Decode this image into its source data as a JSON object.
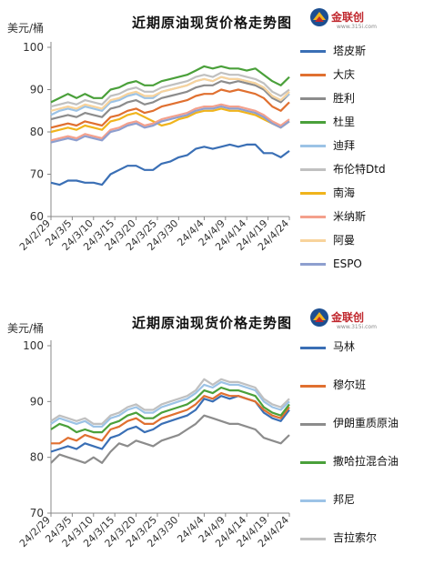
{
  "chart_data": [
    {
      "type": "line",
      "title": "近期原油现货价格走势图",
      "ylabel": "美元/桶",
      "ylim": [
        60,
        100
      ],
      "yticks": [
        "60",
        "70",
        "80",
        "90",
        "100"
      ],
      "xtick_labels": [
        "24/2/29",
        "24/3/5",
        "24/3/10",
        "24/3/15",
        "24/3/20",
        "24/3/25",
        "24/3/30",
        "24/4/4",
        "24/4/9",
        "24/4/14",
        "24/4/19",
        "24/4/24"
      ],
      "xtick_positions": [
        0,
        5,
        10,
        15,
        20,
        25,
        30,
        36,
        41,
        46,
        51,
        56
      ],
      "x_max": 56,
      "series": [
        {
          "name": "塔皮斯",
          "color": "#3a6fb5",
          "x": [
            0,
            2,
            4,
            6,
            8,
            10,
            12,
            14,
            16,
            18,
            20,
            22,
            24,
            26,
            28,
            30,
            32,
            34,
            36,
            38,
            40,
            42,
            44,
            46,
            48,
            50,
            52,
            54,
            56
          ],
          "values": [
            68,
            67.5,
            68.5,
            68.5,
            68,
            68,
            67.5,
            70,
            71,
            72,
            72,
            71,
            71,
            72.5,
            73,
            74,
            74.5,
            76,
            76.5,
            76,
            76.5,
            77,
            76.5,
            77,
            77,
            75,
            75,
            74,
            75.5
          ]
        },
        {
          "name": "大庆",
          "color": "#e07030",
          "x": [
            0,
            2,
            4,
            6,
            8,
            10,
            12,
            14,
            16,
            18,
            20,
            22,
            24,
            26,
            28,
            30,
            32,
            34,
            36,
            38,
            40,
            42,
            44,
            46,
            48,
            50,
            52,
            54,
            56
          ],
          "values": [
            81,
            81.5,
            82,
            81.5,
            82.5,
            82,
            81.5,
            83.5,
            84,
            85,
            85.5,
            84.5,
            85,
            86,
            86.5,
            87,
            87.5,
            88.5,
            89,
            89,
            90,
            89.5,
            90,
            89.5,
            89,
            88,
            86,
            85,
            87
          ]
        },
        {
          "name": "胜利",
          "color": "#8c8c8c",
          "x": [
            0,
            2,
            4,
            6,
            8,
            10,
            12,
            14,
            16,
            18,
            20,
            22,
            24,
            26,
            28,
            30,
            32,
            34,
            36,
            38,
            40,
            42,
            44,
            46,
            48,
            50,
            52,
            54,
            56
          ],
          "values": [
            83,
            83.5,
            84,
            83.5,
            84.5,
            84,
            83.5,
            85.5,
            86,
            87,
            87.5,
            86.5,
            87,
            88,
            88.5,
            89,
            89.5,
            90.5,
            91,
            91,
            92,
            91.5,
            92,
            91.5,
            91,
            90,
            88,
            87,
            89
          ]
        },
        {
          "name": "杜里",
          "color": "#4aa03a",
          "x": [
            0,
            2,
            4,
            6,
            8,
            10,
            12,
            14,
            16,
            18,
            20,
            22,
            24,
            26,
            28,
            30,
            32,
            34,
            36,
            38,
            40,
            42,
            44,
            46,
            48,
            50,
            52,
            54,
            56
          ],
          "values": [
            87,
            88,
            89,
            88,
            89,
            88,
            88,
            90,
            90.5,
            91.5,
            92,
            91,
            91,
            92,
            92.5,
            93,
            93.5,
            94.5,
            95.5,
            95,
            95.5,
            95,
            95,
            94.5,
            95,
            93.5,
            92,
            91,
            93
          ]
        },
        {
          "name": "迪拜",
          "color": "#9cc3e6",
          "x": [
            0,
            2,
            4,
            6,
            8,
            10,
            12,
            14,
            16,
            18,
            20,
            22,
            24,
            26,
            28,
            30,
            32,
            34,
            36,
            38,
            40,
            42,
            44,
            46,
            48,
            50,
            52,
            54,
            56
          ],
          "values": [
            84,
            85,
            85.5,
            85,
            86,
            85.5,
            85,
            87,
            87.5,
            88.5,
            89,
            88,
            88,
            89.5,
            90,
            90.5,
            91,
            92,
            92.5,
            92,
            93,
            92.5,
            92.5,
            92,
            91.5,
            90.5,
            88.5,
            87.5,
            89
          ]
        },
        {
          "name": "布伦特Dtd",
          "color": "#c0c0c0",
          "x": [
            0,
            2,
            4,
            6,
            8,
            10,
            12,
            14,
            16,
            18,
            20,
            22,
            24,
            26,
            28,
            30,
            32,
            34,
            36,
            38,
            40,
            42,
            44,
            46,
            48,
            50,
            52,
            54,
            56
          ],
          "values": [
            86,
            86.5,
            87,
            86.5,
            87.5,
            87,
            86.5,
            88.5,
            89,
            90,
            90.5,
            89.5,
            89.5,
            90.5,
            91,
            91.5,
            92,
            93,
            93.5,
            93,
            94,
            93.5,
            93.5,
            93,
            92.5,
            91.5,
            89.5,
            88.5,
            90
          ]
        },
        {
          "name": "南海",
          "color": "#f0b41c",
          "x": [
            0,
            2,
            4,
            6,
            8,
            10,
            12,
            14,
            16,
            18,
            20,
            22,
            24,
            26,
            28,
            30,
            32,
            34,
            36,
            38,
            40,
            42,
            44,
            46,
            48,
            50,
            52,
            54,
            56
          ],
          "values": [
            80,
            80.5,
            81,
            80.5,
            81.5,
            81,
            80.5,
            82.5,
            83,
            84,
            84.5,
            83.5,
            82.5,
            81.5,
            82,
            83,
            83.5,
            84.5,
            85,
            85,
            85.5,
            85,
            85,
            84.5,
            84,
            83,
            82,
            81,
            82.5
          ]
        },
        {
          "name": "米纳斯",
          "color": "#f4a08c",
          "x": [
            0,
            2,
            4,
            6,
            8,
            10,
            12,
            14,
            16,
            18,
            20,
            22,
            24,
            26,
            28,
            30,
            32,
            34,
            36,
            38,
            40,
            42,
            44,
            46,
            48,
            50,
            52,
            54,
            56
          ],
          "values": [
            78,
            78.5,
            79,
            78.5,
            79.5,
            79,
            78.5,
            80.5,
            81,
            82,
            82.5,
            81.5,
            82,
            83,
            83.5,
            84,
            84.5,
            85.5,
            86,
            86,
            86.5,
            86,
            86,
            85.5,
            85,
            84,
            82.5,
            81.5,
            83
          ]
        },
        {
          "name": "阿曼",
          "color": "#f8d39c",
          "x": [
            0,
            2,
            4,
            6,
            8,
            10,
            12,
            14,
            16,
            18,
            20,
            22,
            24,
            26,
            28,
            30,
            32,
            34,
            36,
            38,
            40,
            42,
            44,
            46,
            48,
            50,
            52,
            54,
            56
          ],
          "values": [
            85,
            85.5,
            86,
            85.5,
            86.5,
            86,
            85.5,
            87.5,
            88,
            89,
            89.5,
            88.5,
            88.5,
            89.5,
            90,
            90.5,
            91,
            92,
            92.5,
            92,
            93,
            92.5,
            92.5,
            92,
            91.5,
            90.5,
            88.5,
            87.5,
            89.5
          ]
        },
        {
          "name": "ESPO",
          "color": "#8e9fcf",
          "x": [
            0,
            2,
            4,
            6,
            8,
            10,
            12,
            14,
            16,
            18,
            20,
            22,
            24,
            26,
            28,
            30,
            32,
            34,
            36,
            38,
            40,
            42,
            44,
            46,
            48,
            50,
            52,
            54,
            56
          ],
          "values": [
            77.5,
            78,
            78.5,
            78,
            79,
            78.5,
            78,
            80,
            80.5,
            81.5,
            82,
            81,
            81.5,
            82.5,
            83,
            83.5,
            84,
            85,
            85.5,
            85.5,
            86,
            85.5,
            85.5,
            85,
            84.5,
            83.5,
            82,
            81,
            82.5
          ]
        }
      ]
    },
    {
      "type": "line",
      "title": "近期原油现货价格走势图",
      "ylabel": "美元/桶",
      "ylim": [
        70,
        100
      ],
      "yticks": [
        "70",
        "80",
        "90",
        "100"
      ],
      "xtick_labels": [
        "24/2/29",
        "24/3/5",
        "24/3/10",
        "24/3/15",
        "24/3/20",
        "24/3/25",
        "24/3/30",
        "24/4/4",
        "24/4/9",
        "24/4/14",
        "24/4/19",
        "24/4/24"
      ],
      "xtick_positions": [
        0,
        5,
        10,
        15,
        20,
        25,
        30,
        36,
        41,
        46,
        51,
        56
      ],
      "x_max": 56,
      "series": [
        {
          "name": "马林",
          "color": "#3a6fb5",
          "x": [
            0,
            2,
            4,
            6,
            8,
            10,
            12,
            14,
            16,
            18,
            20,
            22,
            24,
            26,
            28,
            30,
            32,
            34,
            36,
            38,
            40,
            42,
            44,
            46,
            48,
            50,
            52,
            54,
            56
          ],
          "values": [
            81,
            81.5,
            82,
            81.5,
            82.5,
            82,
            81.5,
            83.5,
            84,
            85,
            85.5,
            84.5,
            85,
            86,
            86.5,
            87,
            87.5,
            88.5,
            90.5,
            90,
            91,
            90.5,
            91,
            90.5,
            90,
            88,
            87,
            86.5,
            88.5
          ]
        },
        {
          "name": "穆尔班",
          "color": "#e07030",
          "x": [
            0,
            2,
            4,
            6,
            8,
            10,
            12,
            14,
            16,
            18,
            20,
            22,
            24,
            26,
            28,
            30,
            32,
            34,
            36,
            38,
            40,
            42,
            44,
            46,
            48,
            50,
            52,
            54,
            56
          ],
          "values": [
            82.5,
            82.5,
            83.5,
            83,
            84,
            83.5,
            83,
            85,
            85.5,
            86.5,
            87,
            86,
            86,
            87,
            87.5,
            88,
            88.5,
            89.5,
            91,
            90.5,
            91.5,
            91,
            91,
            90.5,
            90,
            88.5,
            87.5,
            87,
            89
          ]
        },
        {
          "name": "伊朗重质原油",
          "color": "#8c8c8c",
          "x": [
            0,
            2,
            4,
            6,
            8,
            10,
            12,
            14,
            16,
            18,
            20,
            22,
            24,
            26,
            28,
            30,
            32,
            34,
            36,
            38,
            40,
            42,
            44,
            46,
            48,
            50,
            52,
            54,
            56
          ],
          "values": [
            79,
            80.5,
            80,
            79.5,
            79,
            80,
            79,
            81,
            82.5,
            82,
            83,
            82.5,
            82,
            83,
            83.5,
            84,
            85,
            86,
            87.5,
            87,
            86.5,
            86,
            86,
            85.5,
            85,
            83.5,
            83,
            82.5,
            84
          ]
        },
        {
          "name": "撒哈拉混合油",
          "color": "#4aa03a",
          "x": [
            0,
            2,
            4,
            6,
            8,
            10,
            12,
            14,
            16,
            18,
            20,
            22,
            24,
            26,
            28,
            30,
            32,
            34,
            36,
            38,
            40,
            42,
            44,
            46,
            48,
            50,
            52,
            54,
            56
          ],
          "values": [
            85,
            86,
            85.5,
            84.5,
            85,
            84.5,
            84.5,
            86,
            86.5,
            87.5,
            88,
            87,
            87,
            88,
            88.5,
            89,
            89.5,
            90.5,
            92,
            91.5,
            92.5,
            92,
            92,
            91.5,
            91,
            89,
            88,
            87.5,
            89.5
          ]
        },
        {
          "name": "邦尼",
          "color": "#9cc3e6",
          "x": [
            0,
            2,
            4,
            6,
            8,
            10,
            12,
            14,
            16,
            18,
            20,
            22,
            24,
            26,
            28,
            30,
            32,
            34,
            36,
            38,
            40,
            42,
            44,
            46,
            48,
            50,
            52,
            54,
            56
          ],
          "values": [
            86,
            87,
            86.5,
            86,
            86.5,
            85.5,
            85.5,
            87,
            87.5,
            88.5,
            89,
            88,
            88,
            89,
            89.5,
            90,
            90.5,
            91.5,
            93,
            92.5,
            93.5,
            93,
            93,
            92.5,
            92,
            90,
            89,
            88.5,
            90
          ]
        },
        {
          "name": "吉拉索尔",
          "color": "#c0c0c0",
          "x": [
            0,
            2,
            4,
            6,
            8,
            10,
            12,
            14,
            16,
            18,
            20,
            22,
            24,
            26,
            28,
            30,
            32,
            34,
            36,
            38,
            40,
            42,
            44,
            46,
            48,
            50,
            52,
            54,
            56
          ],
          "values": [
            86.5,
            87.5,
            87,
            86.5,
            87,
            86,
            86,
            87.5,
            88,
            89,
            89.5,
            88.5,
            88.5,
            89.5,
            90,
            90.5,
            91,
            92,
            94,
            93,
            94,
            93.5,
            93.5,
            93,
            92.5,
            90.5,
            89.5,
            89,
            90.5
          ]
        }
      ]
    }
  ],
  "logo": {
    "name": "金联创",
    "sub": "www.315i.com"
  }
}
